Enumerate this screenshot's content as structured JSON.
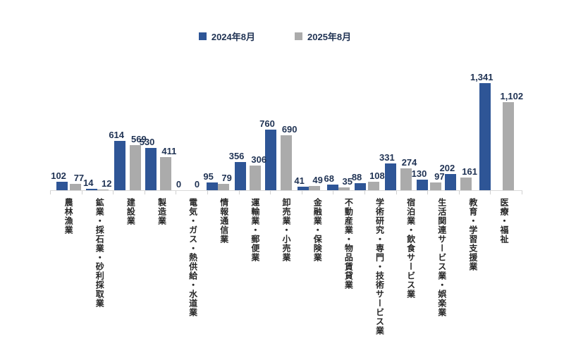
{
  "chart_data": {
    "type": "bar",
    "title": "",
    "xlabel": "",
    "ylabel": "",
    "ylim": [
      0,
      1400
    ],
    "grid": false,
    "legend_position": "top",
    "value_labels": true,
    "axis_color": "#d9d9d9",
    "label_color": "#1f3253",
    "category_label_color": "#262626",
    "categories": [
      "農林漁業",
      "鉱業・採石業・砂利採取業",
      "建設業",
      "製造業",
      "電気・ガス・熱供給・水道業",
      "情報通信業",
      "運輸業・郵便業",
      "卸売業・小売業",
      "金融業・保険業",
      "不動産業・物品賃貸業",
      "学術研究・専門・技術サービス業",
      "宿泊業・飲食サービス業",
      "生活関連サービス業・娯楽業",
      "教育・学習支援業",
      "医療・福祉"
    ],
    "series": [
      {
        "name": "2024年8月",
        "color": "#2e5596",
        "values": [
          102,
          14,
          614,
          530,
          0,
          95,
          356,
          760,
          41,
          68,
          88,
          331,
          130,
          202,
          1341
        ]
      },
      {
        "name": "2025年8月",
        "color": "#ababab",
        "values": [
          77,
          12,
          569,
          411,
          0,
          79,
          306,
          690,
          49,
          35,
          108,
          274,
          97,
          161,
          1102
        ]
      }
    ]
  }
}
